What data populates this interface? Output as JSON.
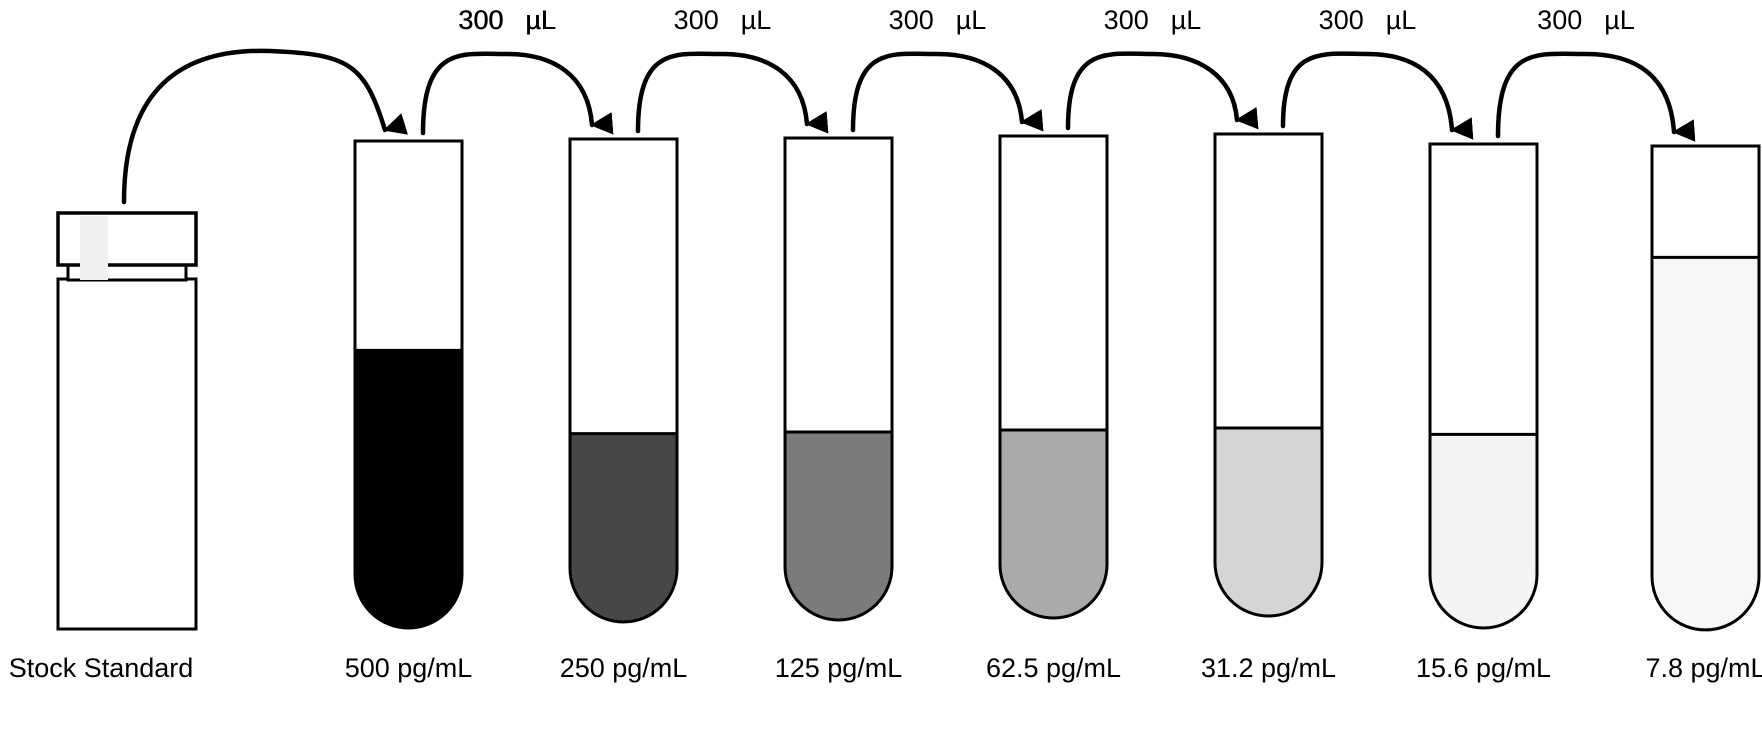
{
  "stock": {
    "label": "Stock Standard"
  },
  "transfer": {
    "amount": "300",
    "unit": "µL"
  },
  "tubes": [
    {
      "label": "500 pg/mL",
      "fill_color": "#000000",
      "fill_fraction": 0.57
    },
    {
      "label": "250 pg/mL",
      "fill_color": "#474747",
      "fill_fraction": 0.39
    },
    {
      "label": "125 pg/mL",
      "fill_color": "#7b7b7b",
      "fill_fraction": 0.39
    },
    {
      "label": "62.5 pg/mL",
      "fill_color": "#aaaaaa",
      "fill_fraction": 0.39
    },
    {
      "label": "31.2 pg/mL",
      "fill_color": "#d5d5d5",
      "fill_fraction": 0.39
    },
    {
      "label": "15.6 pg/mL",
      "fill_color": "#f4f4f4",
      "fill_fraction": 0.4
    },
    {
      "label": "7.8 pg/mL",
      "fill_color": "#f7f7f7",
      "fill_fraction": 0.77
    }
  ]
}
